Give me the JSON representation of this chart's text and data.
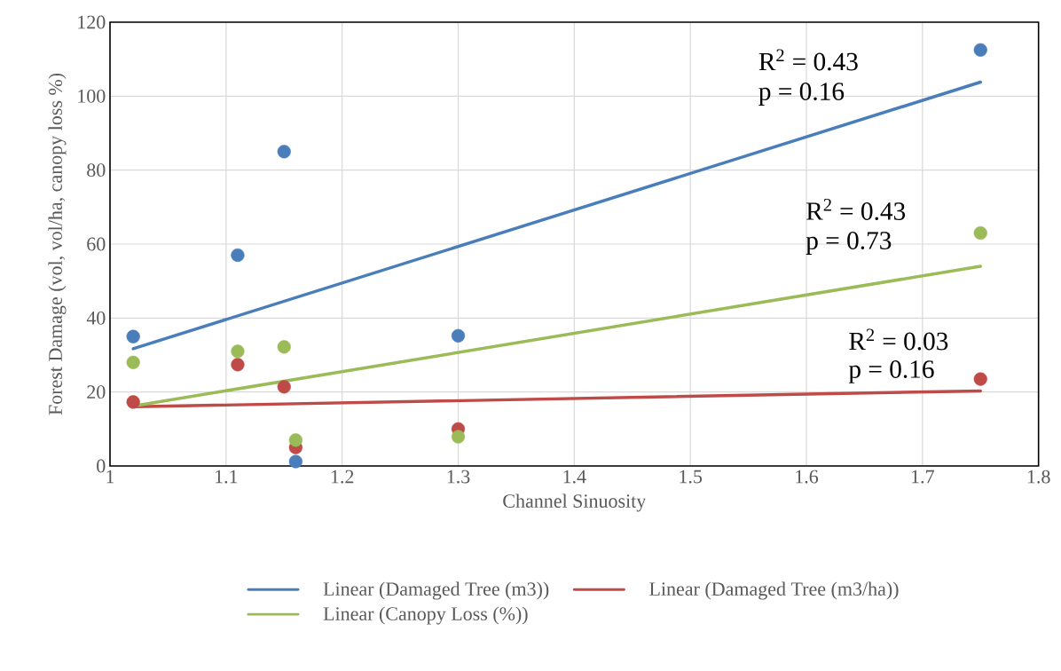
{
  "chart_data": {
    "type": "scatter",
    "xlabel": "Channel Sinuosity",
    "ylabel": "Forest Damage (vol, vol/ha, canopy loss %)",
    "xlim": [
      1,
      1.8
    ],
    "xticks": [
      1,
      1.1,
      1.2,
      1.3,
      1.4,
      1.5,
      1.6,
      1.7,
      1.8
    ],
    "ylim": [
      0,
      120
    ],
    "yticks": [
      0,
      20,
      40,
      60,
      80,
      100,
      120
    ],
    "grid": true,
    "legend": "bottom",
    "series": [
      {
        "marker": "circle",
        "color": "#4a7ebb",
        "x": [
          1.02,
          1.11,
          1.15,
          1.16,
          1.3,
          1.75
        ],
        "values": [
          35,
          57,
          85,
          1.2,
          35.2,
          112.5
        ]
      },
      {
        "marker": "circle",
        "color": "#be4b48",
        "x": [
          1.02,
          1.11,
          1.15,
          1.16,
          1.3,
          1.75
        ],
        "values": [
          17.3,
          27.4,
          21.4,
          5,
          10,
          23.5
        ]
      },
      {
        "marker": "circle",
        "color": "#9bbb59",
        "x": [
          1.02,
          1.11,
          1.15,
          1.16,
          1.3,
          1.75
        ],
        "values": [
          28,
          31,
          32.2,
          7,
          7.9,
          63
        ]
      },
      {
        "type": "line",
        "marker": "none",
        "name": "Linear (Damaged Tree (m3))",
        "color": "#4a7ebb",
        "x": [
          1.02,
          1.75
        ],
        "values": [
          31.7,
          103.8
        ]
      },
      {
        "type": "line",
        "marker": "none",
        "name": "Linear (Damaged Tree (m3/ha))",
        "color": "#be4b48",
        "x": [
          1.02,
          1.75
        ],
        "values": [
          16,
          20.3
        ]
      },
      {
        "type": "line",
        "marker": "none",
        "name": "Linear (Canopy Loss (%))",
        "color": "#9bbb59",
        "x": [
          1.02,
          1.75
        ],
        "values": [
          16.2,
          54
        ]
      }
    ],
    "annotations": [
      "R$^{2}$ = 0.43",
      "p = 0.16",
      "R$^{2}$ = 0.43",
      "p = 0.73",
      "R$^{2}$ = 0.03",
      "p = 0.16"
    ]
  }
}
